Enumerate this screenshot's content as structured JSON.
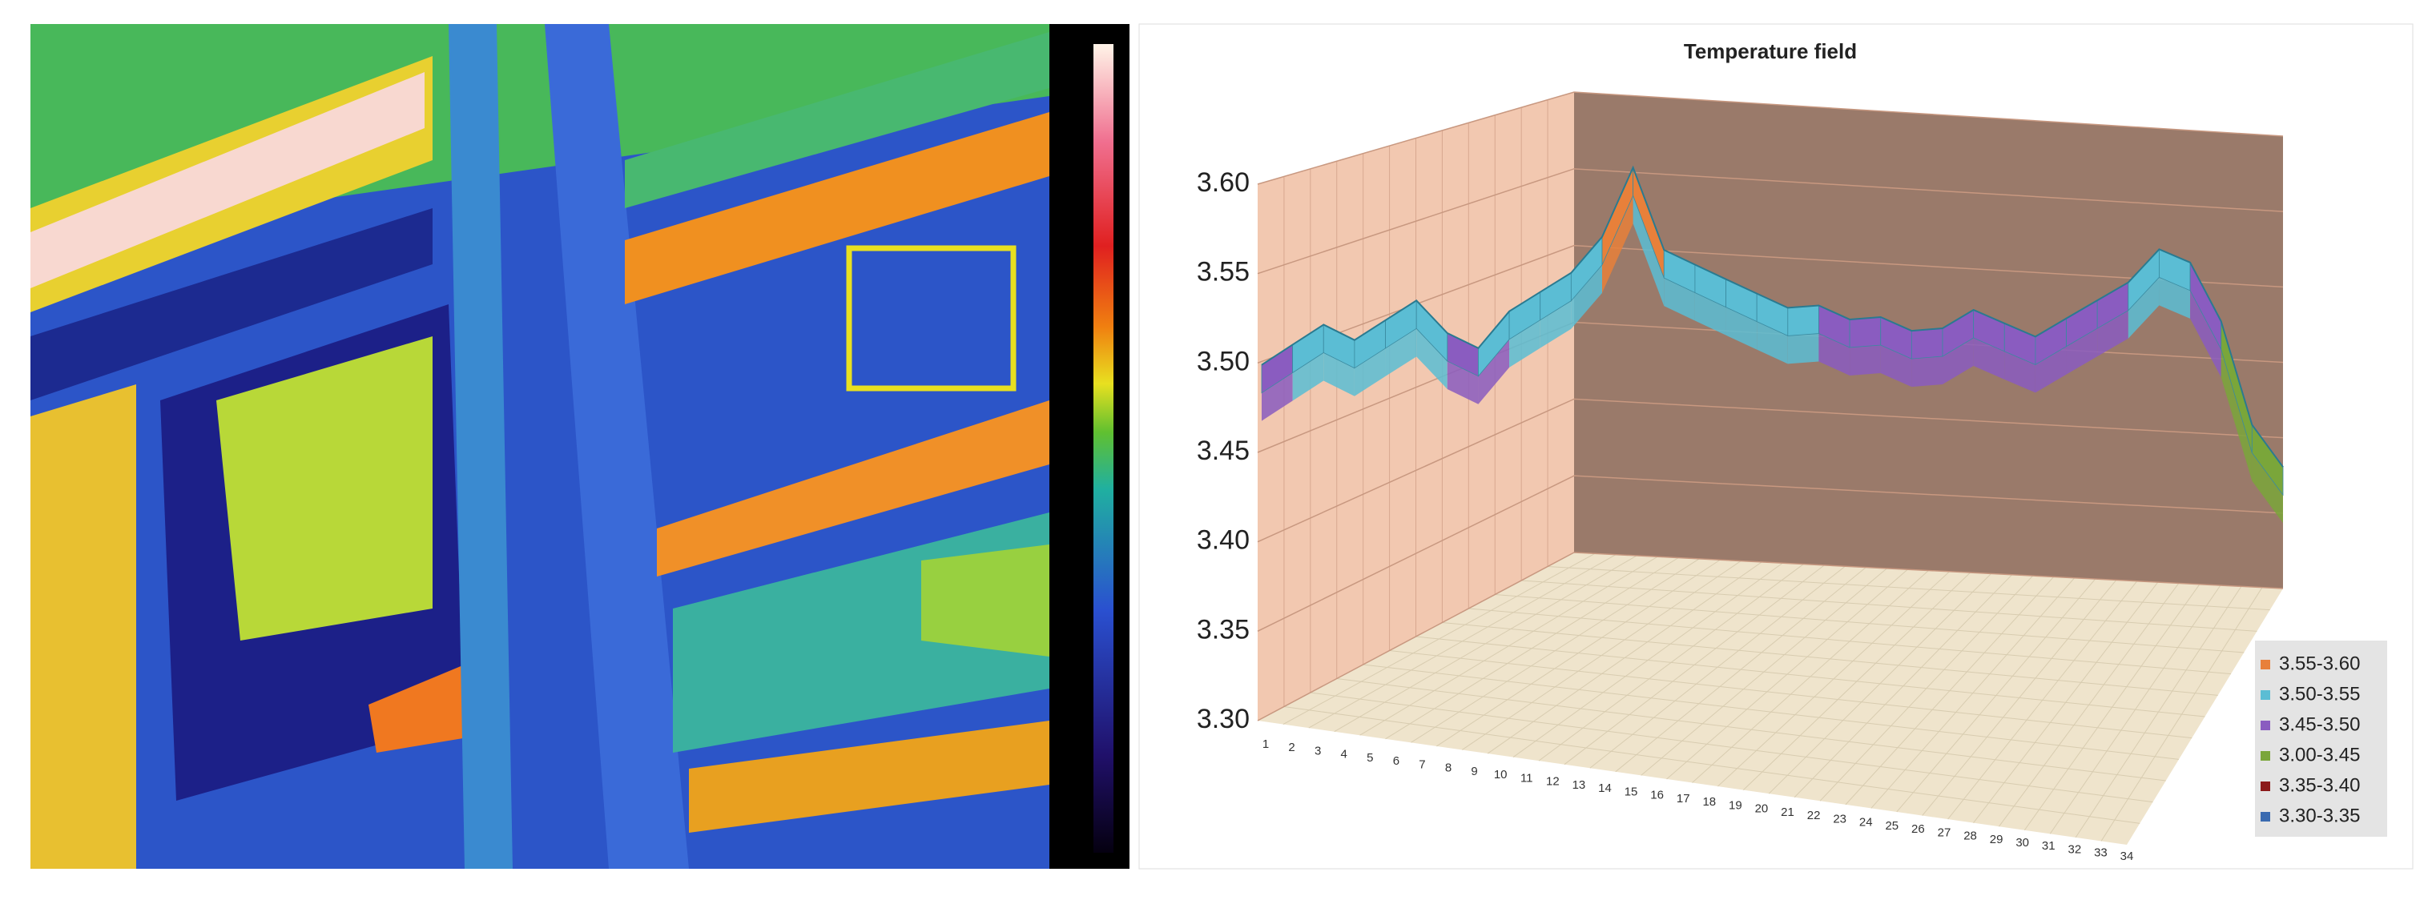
{
  "chart_data": {
    "type": "surface",
    "title": "Temperature field",
    "categories": [
      "1",
      "2",
      "3",
      "4",
      "5",
      "6",
      "7",
      "8",
      "9",
      "10",
      "11",
      "12",
      "13",
      "14",
      "15",
      "16",
      "17",
      "18",
      "19",
      "20",
      "21",
      "22",
      "23",
      "24",
      "25",
      "26",
      "27",
      "28",
      "29",
      "30",
      "31",
      "32",
      "33",
      "34"
    ],
    "values": [
      3.49,
      3.5,
      3.51,
      3.5,
      3.51,
      3.52,
      3.5,
      3.49,
      3.51,
      3.52,
      3.53,
      3.55,
      3.59,
      3.54,
      3.53,
      3.52,
      3.51,
      3.5,
      3.5,
      3.49,
      3.49,
      3.48,
      3.48,
      3.49,
      3.48,
      3.47,
      3.48,
      3.49,
      3.5,
      3.52,
      3.51,
      3.47,
      3.4,
      3.37
    ],
    "ylim": [
      3.3,
      3.6
    ],
    "yticks": [
      {
        "value": 3.3,
        "label": "3.30"
      },
      3.35,
      {
        "value": 3.4,
        "label": "3.40"
      },
      3.45,
      {
        "value": 3.5,
        "label": "3.50"
      },
      3.55,
      {
        "value": 3.6,
        "label": "3.60"
      }
    ],
    "series": [
      {
        "name": "3.55-3.60",
        "color": "#e8803a"
      },
      {
        "name": "3.50-3.55",
        "color": "#5bbdd4"
      },
      {
        "name": "3.45-3.50",
        "color": "#8a5cc0"
      },
      {
        "name": "3.00-3.45",
        "color": "#7aa63a"
      },
      {
        "name": "3.35-3.40",
        "color": "#8b1a1a"
      },
      {
        "name": "3.30-3.35",
        "color": "#3a6ab0"
      }
    ],
    "grid": true,
    "legend": "lower right"
  }
}
